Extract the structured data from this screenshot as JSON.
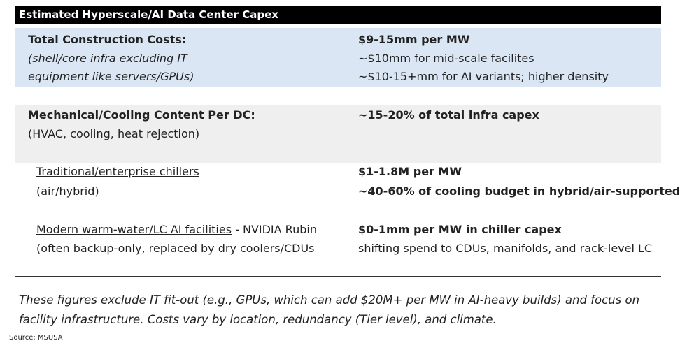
{
  "header": {
    "title": "Estimated Hyperscale/AI Data Center Capex"
  },
  "rows": [
    {
      "left": [
        "Total Construction Costs:",
        "(shell/core infra excluding IT",
        "equipment like servers/GPUs)"
      ],
      "right": [
        "$9-15mm per MW",
        "~$10mm for mid-scale facilites",
        "~$10-15+mm for AI variants; higher density"
      ]
    },
    {
      "left": [
        "Mechanical/Cooling Content Per DC:",
        "(HVAC, cooling, heat rejection)"
      ],
      "right": [
        "~15-20% of total infra capex"
      ]
    },
    {
      "left": [
        "Traditional/enterprise chillers ",
        "(air/hybrid)"
      ],
      "right": [
        "$1-1.8M per MW",
        "~40-60% of cooling budget in hybrid/air-supported"
      ]
    },
    {
      "left": [
        "Modern warm-water/LC AI facilities",
        " - NVIDIA Rubin",
        "(often backup-only, replaced by dry coolers/CDUs"
      ],
      "right": [
        "$0-1mm per MW in chiller capex",
        "shifting spend to CDUs, manifolds, and rack-level LC"
      ]
    }
  ],
  "footnote": [
    "These figures exclude IT fit-out (e.g., GPUs, which can add $20M+ per MW in AI-heavy builds) and focus on",
    "facility infrastructure. Costs vary by location, redundancy (Tier level), and climate."
  ],
  "source": "Source: MSUSA"
}
